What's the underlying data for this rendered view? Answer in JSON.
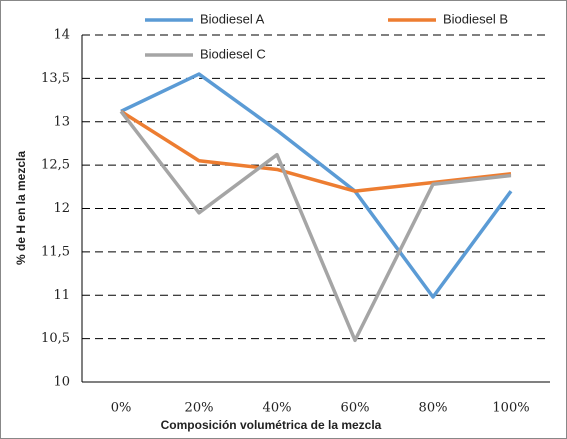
{
  "chart_data": {
    "type": "line",
    "x_label": "Composición volumétrica de la mezcla",
    "y_label": "% de H en la mezcla",
    "categories": [
      "0%",
      "20%",
      "40%",
      "60%",
      "80%",
      "100%"
    ],
    "series": [
      {
        "name": "Biodiesel A",
        "color": "#5b9bd5",
        "values": [
          13.12,
          13.55,
          12.9,
          12.2,
          10.98,
          12.2
        ]
      },
      {
        "name": "Biodiesel B",
        "color": "#ed7d31",
        "values": [
          13.12,
          12.55,
          12.45,
          12.2,
          12.3,
          12.4
        ]
      },
      {
        "name": "Biodiesel C",
        "color": "#a5a5a5",
        "values": [
          13.12,
          11.95,
          12.62,
          10.48,
          12.28,
          12.38
        ]
      }
    ],
    "ylim": [
      10,
      14
    ],
    "yticks": [
      10,
      {
        "value": 10.5,
        "label": "10,5"
      },
      11,
      {
        "value": 11.5,
        "label": "11,5"
      },
      12,
      {
        "value": 12.5,
        "label": "12,5"
      },
      13,
      {
        "value": 13.5,
        "label": "13,5"
      },
      14
    ],
    "grid": true,
    "legend": "top"
  }
}
